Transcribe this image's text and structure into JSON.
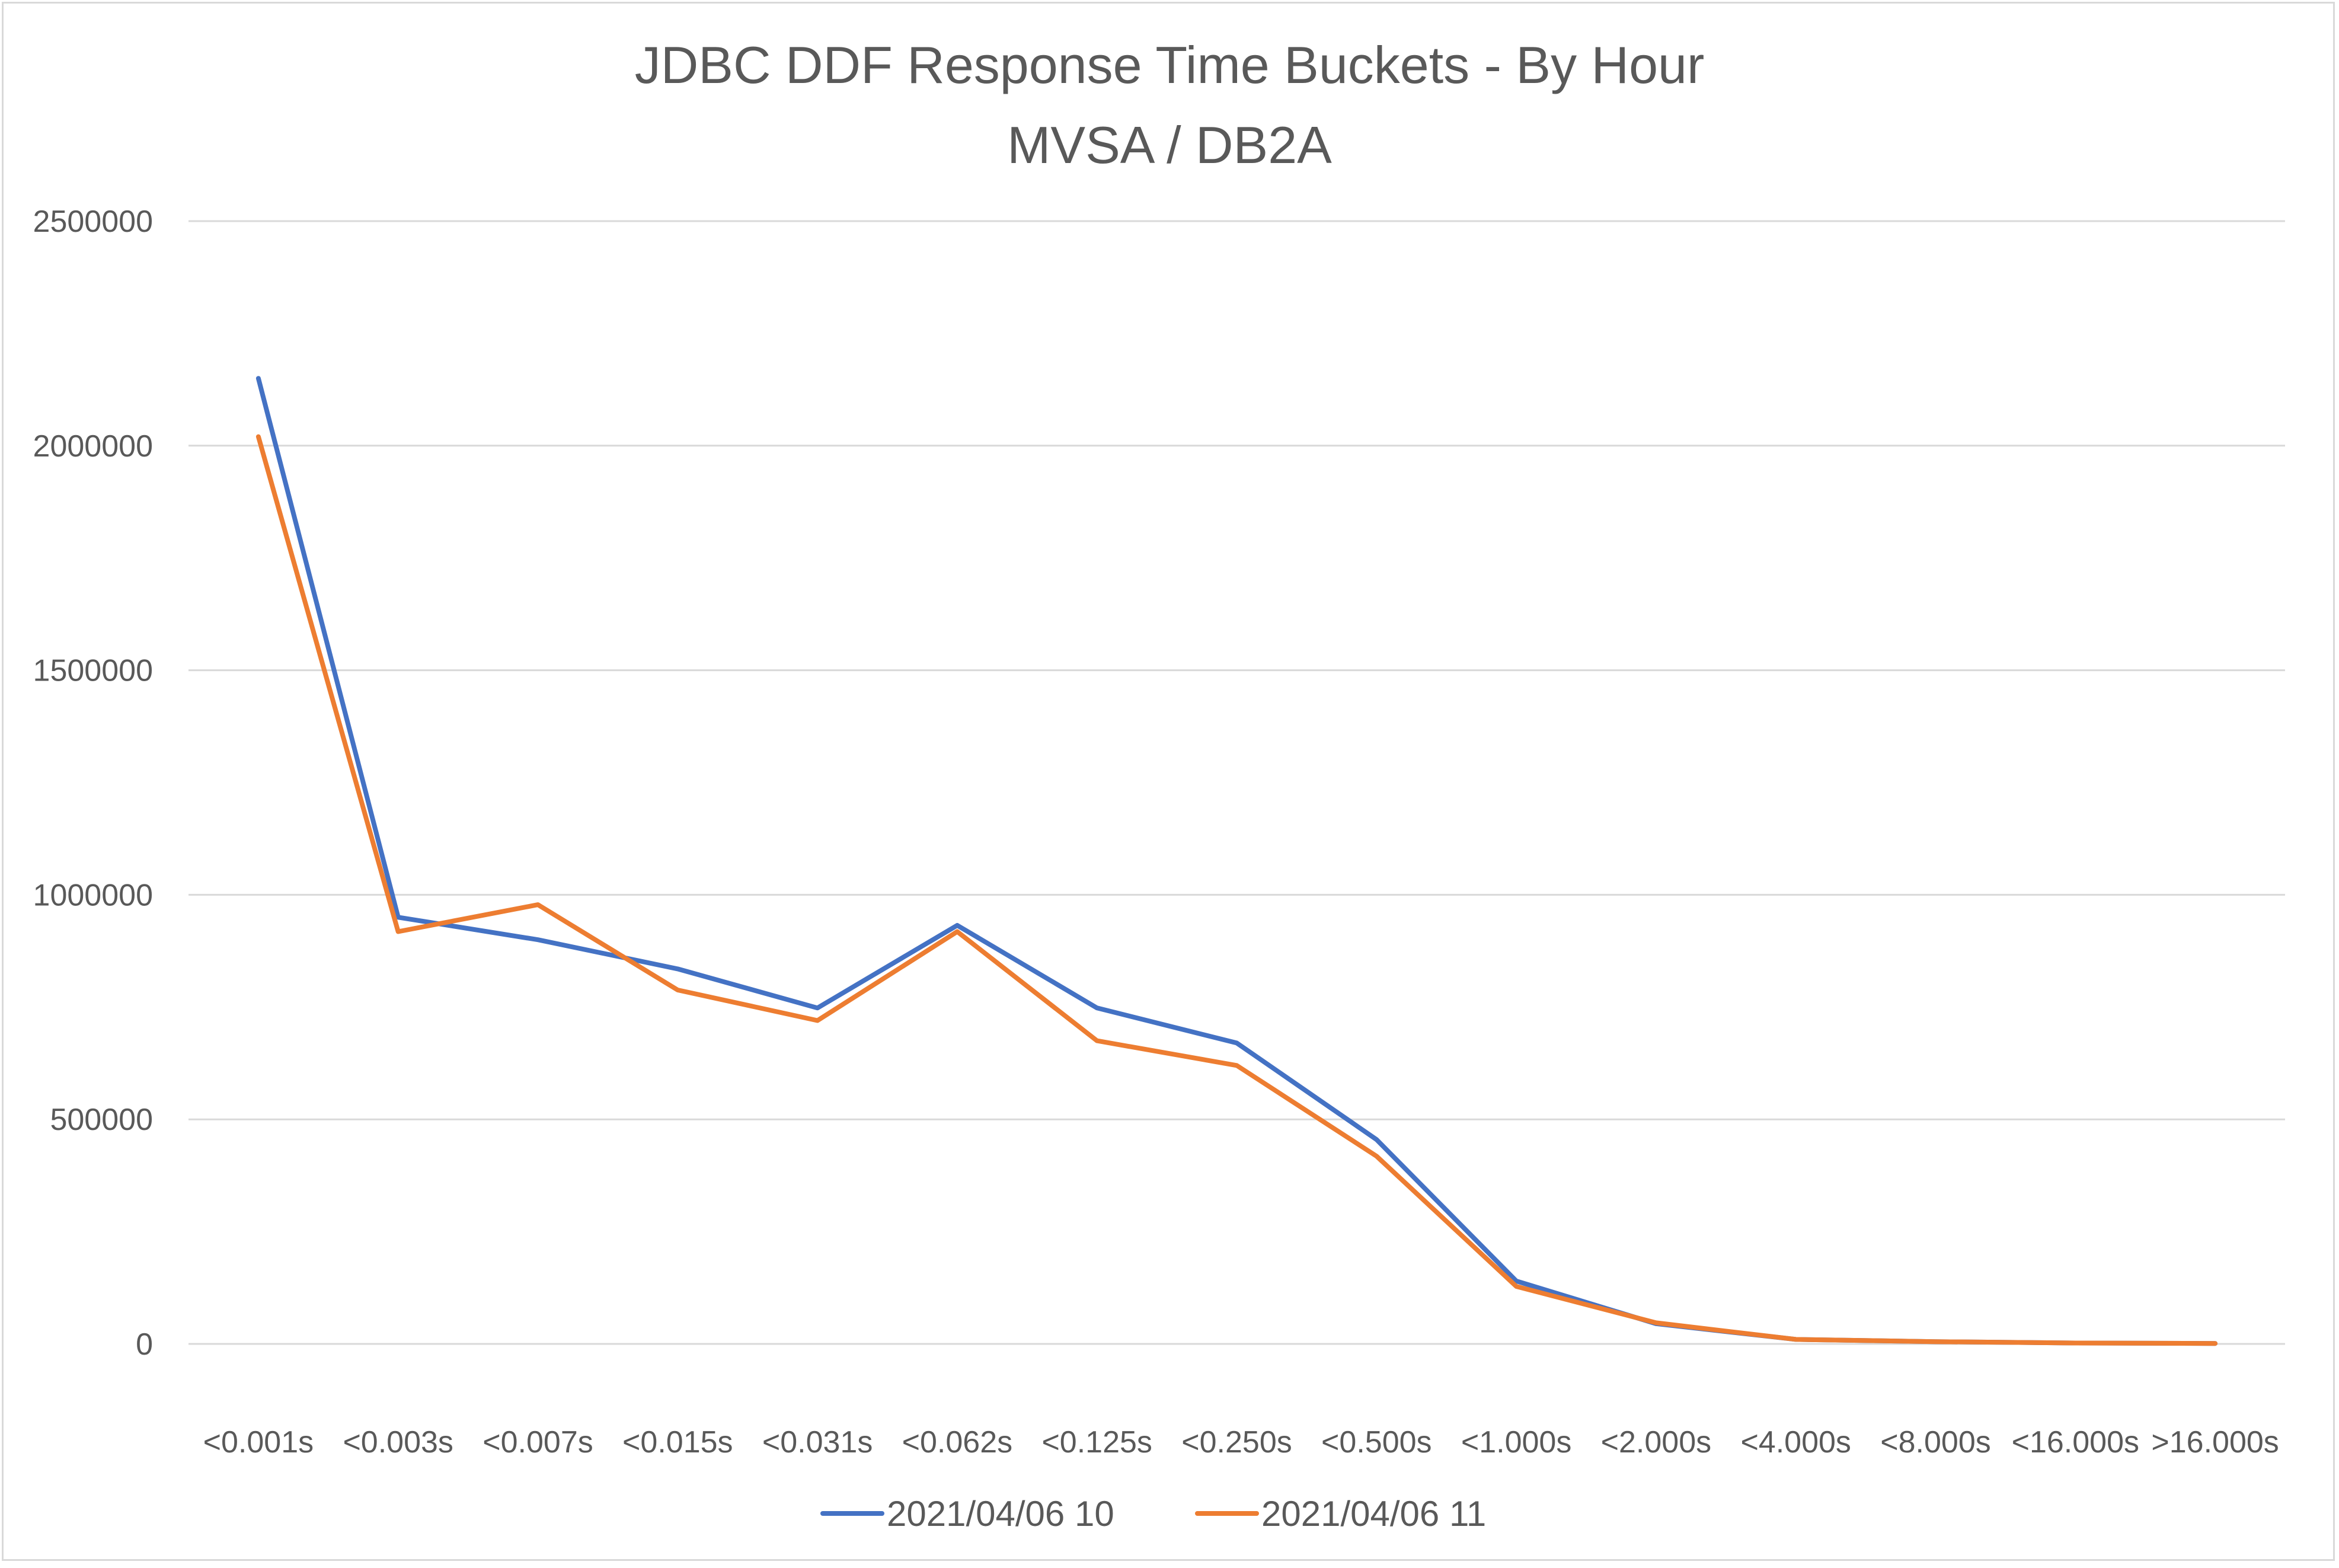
{
  "chart_data": {
    "type": "line",
    "title": "JDBC DDF Response Time Buckets - By Hour",
    "subtitle": "MVSA / DB2A",
    "xlabel": "",
    "ylabel": "",
    "categories": [
      "<0.001s",
      "<0.003s",
      "<0.007s",
      "<0.015s",
      "<0.031s",
      "<0.062s",
      "<0.125s",
      "<0.250s",
      "<0.500s",
      "<1.000s",
      "<2.000s",
      "<4.000s",
      "<8.000s",
      "<16.000s",
      ">16.000s"
    ],
    "ylim": [
      0,
      2500000
    ],
    "yticks": [
      "0",
      "500000",
      "1000000",
      "1500000",
      "2000000",
      "2500000"
    ],
    "grid": "horizontal",
    "legend_position": "bottom",
    "series": [
      {
        "name": "2021/04/06 10",
        "color": "#4472C4",
        "values": [
          2150000,
          950000,
          900000,
          835000,
          748000,
          932000,
          748000,
          670000,
          455000,
          140000,
          45000,
          10000,
          5000,
          2000,
          1000
        ]
      },
      {
        "name": "2021/04/06 11",
        "color": "#ED7D31",
        "values": [
          2020000,
          918000,
          978000,
          788000,
          720000,
          918000,
          675000,
          620000,
          418000,
          128000,
          47000,
          10000,
          5000,
          2000,
          1000
        ]
      }
    ]
  }
}
